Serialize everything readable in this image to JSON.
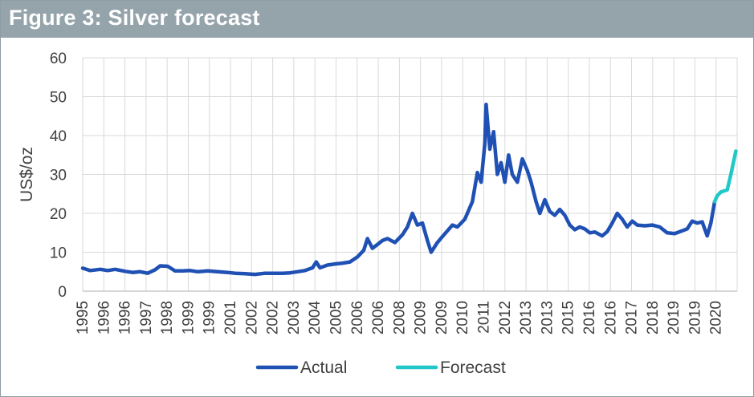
{
  "figure": {
    "title": "Figure 3: Silver forecast"
  },
  "chart_data": {
    "type": "line",
    "ylabel": "US$/oz",
    "ylim": [
      0,
      60
    ],
    "y_ticks": [
      "0",
      "10",
      "20",
      "30",
      "40",
      "50",
      "60"
    ],
    "x_ticks": [
      "1995",
      "1996",
      "1996",
      "1997",
      "1998",
      "1999",
      "1999",
      "2001",
      "2002",
      "2002",
      "2003",
      "2004",
      "2005",
      "2006",
      "2006",
      "2008",
      "2009",
      "2009",
      "2010",
      "2011",
      "2012",
      "2013",
      "2013",
      "2015",
      "2016",
      "2016",
      "2017",
      "2018",
      "2019",
      "2019",
      "2020"
    ],
    "legend": {
      "position": "bottom",
      "entries": [
        "Actual",
        "Forecast"
      ]
    },
    "series": [
      {
        "name": "Actual",
        "color": "#1f50b4",
        "points": [
          [
            1995.0,
            5.9
          ],
          [
            1995.3,
            5.3
          ],
          [
            1995.7,
            5.6
          ],
          [
            1996.0,
            5.3
          ],
          [
            1996.3,
            5.6
          ],
          [
            1996.7,
            5.1
          ],
          [
            1997.0,
            4.8
          ],
          [
            1997.3,
            5.0
          ],
          [
            1997.6,
            4.6
          ],
          [
            1997.9,
            5.5
          ],
          [
            1998.1,
            6.5
          ],
          [
            1998.4,
            6.4
          ],
          [
            1998.7,
            5.2
          ],
          [
            1999.0,
            5.2
          ],
          [
            1999.3,
            5.3
          ],
          [
            1999.6,
            5.0
          ],
          [
            2000.0,
            5.2
          ],
          [
            2000.4,
            5.0
          ],
          [
            2000.8,
            4.8
          ],
          [
            2001.1,
            4.6
          ],
          [
            2001.5,
            4.5
          ],
          [
            2001.9,
            4.3
          ],
          [
            2002.3,
            4.6
          ],
          [
            2002.7,
            4.6
          ],
          [
            2003.0,
            4.6
          ],
          [
            2003.3,
            4.7
          ],
          [
            2003.6,
            5.0
          ],
          [
            2003.9,
            5.3
          ],
          [
            2004.2,
            6.0
          ],
          [
            2004.35,
            7.5
          ],
          [
            2004.5,
            6.0
          ],
          [
            2004.8,
            6.7
          ],
          [
            2005.1,
            7.0
          ],
          [
            2005.4,
            7.2
          ],
          [
            2005.7,
            7.5
          ],
          [
            2006.0,
            8.8
          ],
          [
            2006.25,
            10.5
          ],
          [
            2006.4,
            13.5
          ],
          [
            2006.6,
            11.0
          ],
          [
            2006.8,
            12.0
          ],
          [
            2007.0,
            13.0
          ],
          [
            2007.2,
            13.5
          ],
          [
            2007.5,
            12.5
          ],
          [
            2007.8,
            14.5
          ],
          [
            2008.0,
            16.5
          ],
          [
            2008.2,
            20.0
          ],
          [
            2008.4,
            17.0
          ],
          [
            2008.6,
            17.5
          ],
          [
            2008.8,
            13.0
          ],
          [
            2008.95,
            10.0
          ],
          [
            2009.2,
            12.5
          ],
          [
            2009.4,
            14.0
          ],
          [
            2009.6,
            15.5
          ],
          [
            2009.8,
            17.0
          ],
          [
            2010.0,
            16.5
          ],
          [
            2010.3,
            18.5
          ],
          [
            2010.6,
            23.0
          ],
          [
            2010.8,
            30.5
          ],
          [
            2010.95,
            28.0
          ],
          [
            2011.1,
            38.0
          ],
          [
            2011.15,
            48.0
          ],
          [
            2011.3,
            36.5
          ],
          [
            2011.45,
            41.0
          ],
          [
            2011.6,
            30.0
          ],
          [
            2011.75,
            33.0
          ],
          [
            2011.9,
            28.0
          ],
          [
            2012.05,
            35.0
          ],
          [
            2012.2,
            30.0
          ],
          [
            2012.4,
            28.0
          ],
          [
            2012.6,
            34.0
          ],
          [
            2012.8,
            31.0
          ],
          [
            2012.95,
            28.0
          ],
          [
            2013.15,
            23.0
          ],
          [
            2013.3,
            20.0
          ],
          [
            2013.5,
            23.5
          ],
          [
            2013.7,
            20.5
          ],
          [
            2013.9,
            19.5
          ],
          [
            2014.1,
            21.0
          ],
          [
            2014.3,
            19.5
          ],
          [
            2014.5,
            17.0
          ],
          [
            2014.7,
            15.8
          ],
          [
            2014.9,
            16.5
          ],
          [
            2015.1,
            16.0
          ],
          [
            2015.3,
            15.0
          ],
          [
            2015.5,
            15.2
          ],
          [
            2015.8,
            14.2
          ],
          [
            2016.0,
            15.3
          ],
          [
            2016.2,
            17.5
          ],
          [
            2016.4,
            20.0
          ],
          [
            2016.6,
            18.5
          ],
          [
            2016.8,
            16.5
          ],
          [
            2017.0,
            18.0
          ],
          [
            2017.2,
            17.0
          ],
          [
            2017.5,
            16.8
          ],
          [
            2017.8,
            17.0
          ],
          [
            2018.1,
            16.5
          ],
          [
            2018.4,
            15.0
          ],
          [
            2018.7,
            14.8
          ],
          [
            2019.0,
            15.5
          ],
          [
            2019.2,
            16.0
          ],
          [
            2019.4,
            18.0
          ],
          [
            2019.6,
            17.5
          ],
          [
            2019.8,
            17.8
          ],
          [
            2020.0,
            14.2
          ],
          [
            2020.15,
            17.5
          ],
          [
            2020.3,
            23.0
          ]
        ]
      },
      {
        "name": "Forecast",
        "color": "#22c8c8",
        "points": [
          [
            2020.3,
            23.0
          ],
          [
            2020.4,
            24.5
          ],
          [
            2020.55,
            25.5
          ],
          [
            2020.8,
            26.0
          ],
          [
            2020.95,
            30.0
          ],
          [
            2021.15,
            36.0
          ]
        ]
      }
    ]
  }
}
